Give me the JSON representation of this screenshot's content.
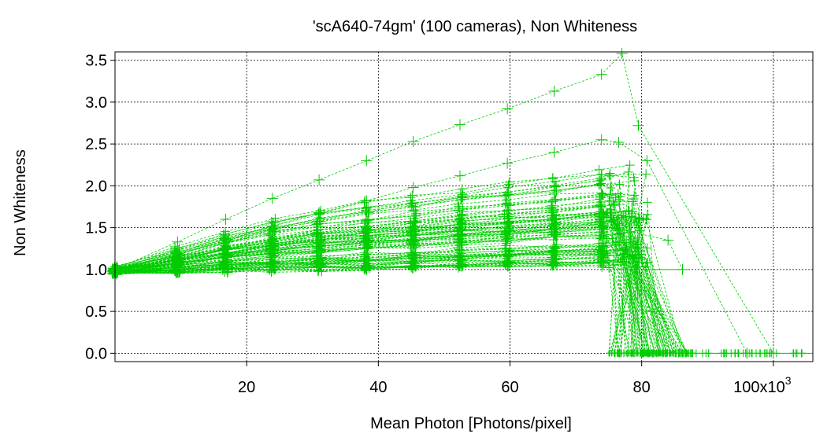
{
  "chart_data": {
    "type": "line",
    "title": "'scA640-74gm' (100 cameras), Non Whiteness",
    "xlabel": "Mean Photon [Photons/pixel]",
    "ylabel": "Non Whiteness",
    "xlim": [
      0,
      106000
    ],
    "ylim": [
      -0.1,
      3.6
    ],
    "x_ticks": [
      {
        "value": 20000,
        "label": "20"
      },
      {
        "value": 40000,
        "label": "40"
      },
      {
        "value": 60000,
        "label": "60"
      },
      {
        "value": 80000,
        "label": "80"
      },
      {
        "value": 100000,
        "label": "100x10",
        "sup": "3"
      }
    ],
    "y_ticks": [
      {
        "value": 0.0,
        "label": "0.0"
      },
      {
        "value": 0.5,
        "label": "0.5"
      },
      {
        "value": 1.0,
        "label": "1.0"
      },
      {
        "value": 1.5,
        "label": "1.5"
      },
      {
        "value": 2.0,
        "label": "2.0"
      },
      {
        "value": 2.5,
        "label": "2.5"
      },
      {
        "value": 3.0,
        "label": "3.0"
      },
      {
        "value": 3.5,
        "label": "3.5"
      }
    ],
    "grid": true,
    "series_color": "#00cc00",
    "marker": "plus",
    "line_style": "dashed",
    "series_count": 100,
    "highlighted_series": [
      {
        "x": [
          0,
          9500,
          16800,
          23900,
          31000,
          38200,
          45300,
          52400,
          59600,
          66700,
          73900,
          77000,
          79500,
          100000
        ],
        "y": [
          1.0,
          1.33,
          1.6,
          1.85,
          2.07,
          2.3,
          2.53,
          2.73,
          2.92,
          3.13,
          3.33,
          3.58,
          2.72,
          0.0
        ]
      },
      {
        "x": [
          0,
          9500,
          16800,
          23900,
          31000,
          38200,
          45300,
          52400,
          59600,
          66700,
          73900,
          76500,
          80800,
          96000
        ],
        "y": [
          1.0,
          1.18,
          1.35,
          1.52,
          1.68,
          1.82,
          1.98,
          2.12,
          2.27,
          2.4,
          2.55,
          2.52,
          2.3,
          0.0
        ]
      },
      {
        "x": [
          0,
          9500,
          16800,
          23900,
          31000,
          38200,
          45300,
          52400,
          59600,
          66700,
          73900,
          77300,
          84000,
          86200
        ],
        "y": [
          1.0,
          1.05,
          1.1,
          1.15,
          1.2,
          1.25,
          1.3,
          1.34,
          1.38,
          1.42,
          1.45,
          1.47,
          1.35,
          1.0
        ]
      }
    ],
    "bulk_envelope": {
      "description_points_x": [
        0,
        9500,
        16800,
        23900,
        31000,
        38200,
        45300,
        52400,
        59600,
        66700,
        73900
      ],
      "upper_y": [
        1.02,
        1.25,
        1.45,
        1.6,
        1.72,
        1.82,
        1.9,
        1.98,
        2.05,
        2.12,
        2.2
      ],
      "lower_y": [
        0.96,
        0.97,
        0.98,
        0.99,
        1.0,
        1.0,
        1.01,
        1.02,
        1.03,
        1.04,
        1.05
      ],
      "drop_x_range": [
        75000,
        87000
      ],
      "floor_x_range": [
        75500,
        88000
      ],
      "floor_y": 0.0
    }
  }
}
